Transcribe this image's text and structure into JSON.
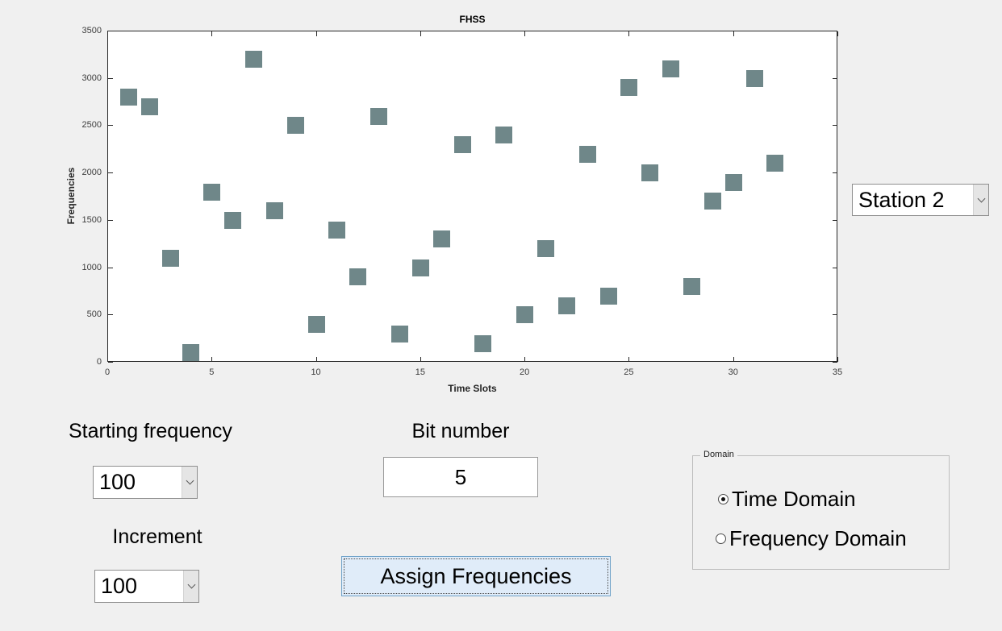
{
  "chart_data": {
    "type": "scatter",
    "title": "FHSS",
    "xlabel": "Time Slots",
    "ylabel": "Frequencies",
    "xlim": [
      0,
      35
    ],
    "ylim": [
      0,
      3500
    ],
    "xticks": [
      0,
      5,
      10,
      15,
      20,
      25,
      30,
      35
    ],
    "yticks": [
      0,
      500,
      1000,
      1500,
      2000,
      2500,
      3000,
      3500
    ],
    "grid": false,
    "legend": "none",
    "marker": "filled-square",
    "marker_color": "#6f8789",
    "x": [
      1,
      2,
      3,
      4,
      5,
      6,
      7,
      8,
      9,
      10,
      11,
      12,
      13,
      14,
      15,
      16,
      17,
      18,
      19,
      20,
      21,
      22,
      23,
      24,
      25,
      26,
      27,
      28,
      29,
      30,
      31,
      32
    ],
    "y": [
      2800,
      2700,
      1100,
      100,
      1800,
      1500,
      3200,
      1600,
      2500,
      400,
      1400,
      900,
      2600,
      300,
      1000,
      1300,
      2300,
      200,
      2400,
      500,
      1200,
      600,
      2200,
      700,
      2900,
      2000,
      3100,
      800,
      1700,
      1900,
      3000,
      2100
    ]
  },
  "station_select": {
    "value": "Station 2"
  },
  "controls": {
    "starting_frequency": {
      "label": "Starting frequency",
      "value": "100"
    },
    "bit_number": {
      "label": "Bit number",
      "value": "5"
    },
    "increment": {
      "label": "Increment",
      "value": "100"
    },
    "assign_button_label": "Assign Frequencies",
    "domain": {
      "legend": "Domain",
      "options": [
        {
          "label": "Time Domain",
          "selected": true
        },
        {
          "label": "Frequency Domain",
          "selected": false
        }
      ]
    }
  },
  "colors": {
    "window_bg": "#f0f0f0",
    "plot_bg": "#ffffff",
    "marker": "#6f8789",
    "button_bg": "#e0ecf9",
    "button_border": "#6da1c8"
  }
}
